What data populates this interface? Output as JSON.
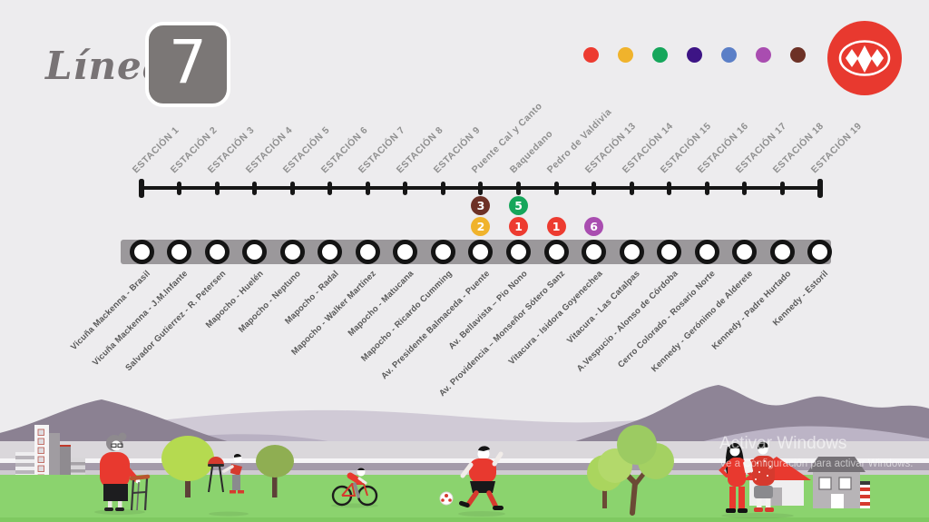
{
  "header": {
    "line_label": "Línea",
    "line_number": "7"
  },
  "legend_dots": [
    {
      "name": "legend-dot-red",
      "color": "#ed3b30"
    },
    {
      "name": "legend-dot-yellow",
      "color": "#f0b32c"
    },
    {
      "name": "legend-dot-green",
      "color": "#16a65b"
    },
    {
      "name": "legend-dot-indigo",
      "color": "#3d1485"
    },
    {
      "name": "legend-dot-blue",
      "color": "#5b7fc7"
    },
    {
      "name": "legend-dot-magenta",
      "color": "#a94db0"
    },
    {
      "name": "legend-dot-brown",
      "color": "#6d3126"
    }
  ],
  "logo": {
    "name": "metro-de-santiago-logo",
    "color": "#e8392f"
  },
  "stations": [
    {
      "id": 1,
      "top_label": "ESTACIÓN 1",
      "bottom_label": "Vicuña Mackenna - Brasil",
      "transfers": []
    },
    {
      "id": 2,
      "top_label": "ESTACIÓN 2",
      "bottom_label": "Vicuña Mackenna - J.M.Infante",
      "transfers": []
    },
    {
      "id": 3,
      "top_label": "ESTACIÓN 3",
      "bottom_label": "Salvador Gutierrez - R. Petersen",
      "transfers": []
    },
    {
      "id": 4,
      "top_label": "ESTACIÓN 4",
      "bottom_label": "Mapocho - Huelén",
      "transfers": []
    },
    {
      "id": 5,
      "top_label": "ESTACIÓN 5",
      "bottom_label": "Mapocho - Neptuno",
      "transfers": []
    },
    {
      "id": 6,
      "top_label": "ESTACIÓN 6",
      "bottom_label": "Mapocho - Radal",
      "transfers": []
    },
    {
      "id": 7,
      "top_label": "ESTACIÓN 7",
      "bottom_label": "Mapocho - Walker Martínez",
      "transfers": []
    },
    {
      "id": 8,
      "top_label": "ESTACIÓN 8",
      "bottom_label": "Mapocho - Matucana",
      "transfers": []
    },
    {
      "id": 9,
      "top_label": "ESTACIÓN 9",
      "bottom_label": "Mapocho - Ricardo Cumming",
      "transfers": []
    },
    {
      "id": 10,
      "top_label": "Puente Cal y Canto",
      "bottom_label": "Av. Presidente Balmaceda - Puente",
      "transfers": [
        {
          "line": "3",
          "color": "#6d3126"
        },
        {
          "line": "2",
          "color": "#f0b32c"
        }
      ]
    },
    {
      "id": 11,
      "top_label": "Baquedano",
      "bottom_label": "Av. Bellavista – Pio Nono",
      "transfers": [
        {
          "line": "5",
          "color": "#16a65b"
        },
        {
          "line": "1",
          "color": "#ed3b30"
        }
      ]
    },
    {
      "id": 12,
      "top_label": "Pedro de Valdivia",
      "bottom_label": "Av. Providencia – Monseñor Sótero Sanz",
      "transfers": [
        {
          "line": "1",
          "color": "#ed3b30"
        }
      ]
    },
    {
      "id": 13,
      "top_label": "ESTACIÓN 13",
      "bottom_label": "Vitacura - Isidora Goyenechea",
      "transfers": [
        {
          "line": "6",
          "color": "#a94db0"
        }
      ]
    },
    {
      "id": 14,
      "top_label": "ESTACIÓN 14",
      "bottom_label": "Vitacura - Las Catalpas",
      "transfers": []
    },
    {
      "id": 15,
      "top_label": "ESTACIÓN 15",
      "bottom_label": "A.Vespucio - Alonso de Córdoba",
      "transfers": []
    },
    {
      "id": 16,
      "top_label": "ESTACIÓN 16",
      "bottom_label": "Cerro Colorado - Rosario Norte",
      "transfers": []
    },
    {
      "id": 17,
      "top_label": "ESTACIÓN 17",
      "bottom_label": "Kennedy - Gerónimo de Alderete",
      "transfers": []
    },
    {
      "id": 18,
      "top_label": "ESTACIÓN 18",
      "bottom_label": "Kennedy - Padre Hurtado",
      "transfers": []
    },
    {
      "id": 19,
      "top_label": "ESTACIÓN 19",
      "bottom_label": "Kennedy - Estoril",
      "transfers": []
    }
  ],
  "watermark": {
    "line1": "Activar Windows",
    "line2": "Ve a Configuración para activar Windows."
  },
  "palette": {
    "background": "#edecee",
    "timeline": "#161616",
    "route_band": "#9b989b",
    "top_label": "#8f8f8f",
    "bottom_label": "#585858",
    "badge_square": "#7b7776",
    "grass": "#8bd36e",
    "mountain_dark": "#8b8192",
    "mountain_mid": "#a89fb2",
    "mountain_light": "#d0cad6",
    "metro_red": "#e8392f"
  }
}
